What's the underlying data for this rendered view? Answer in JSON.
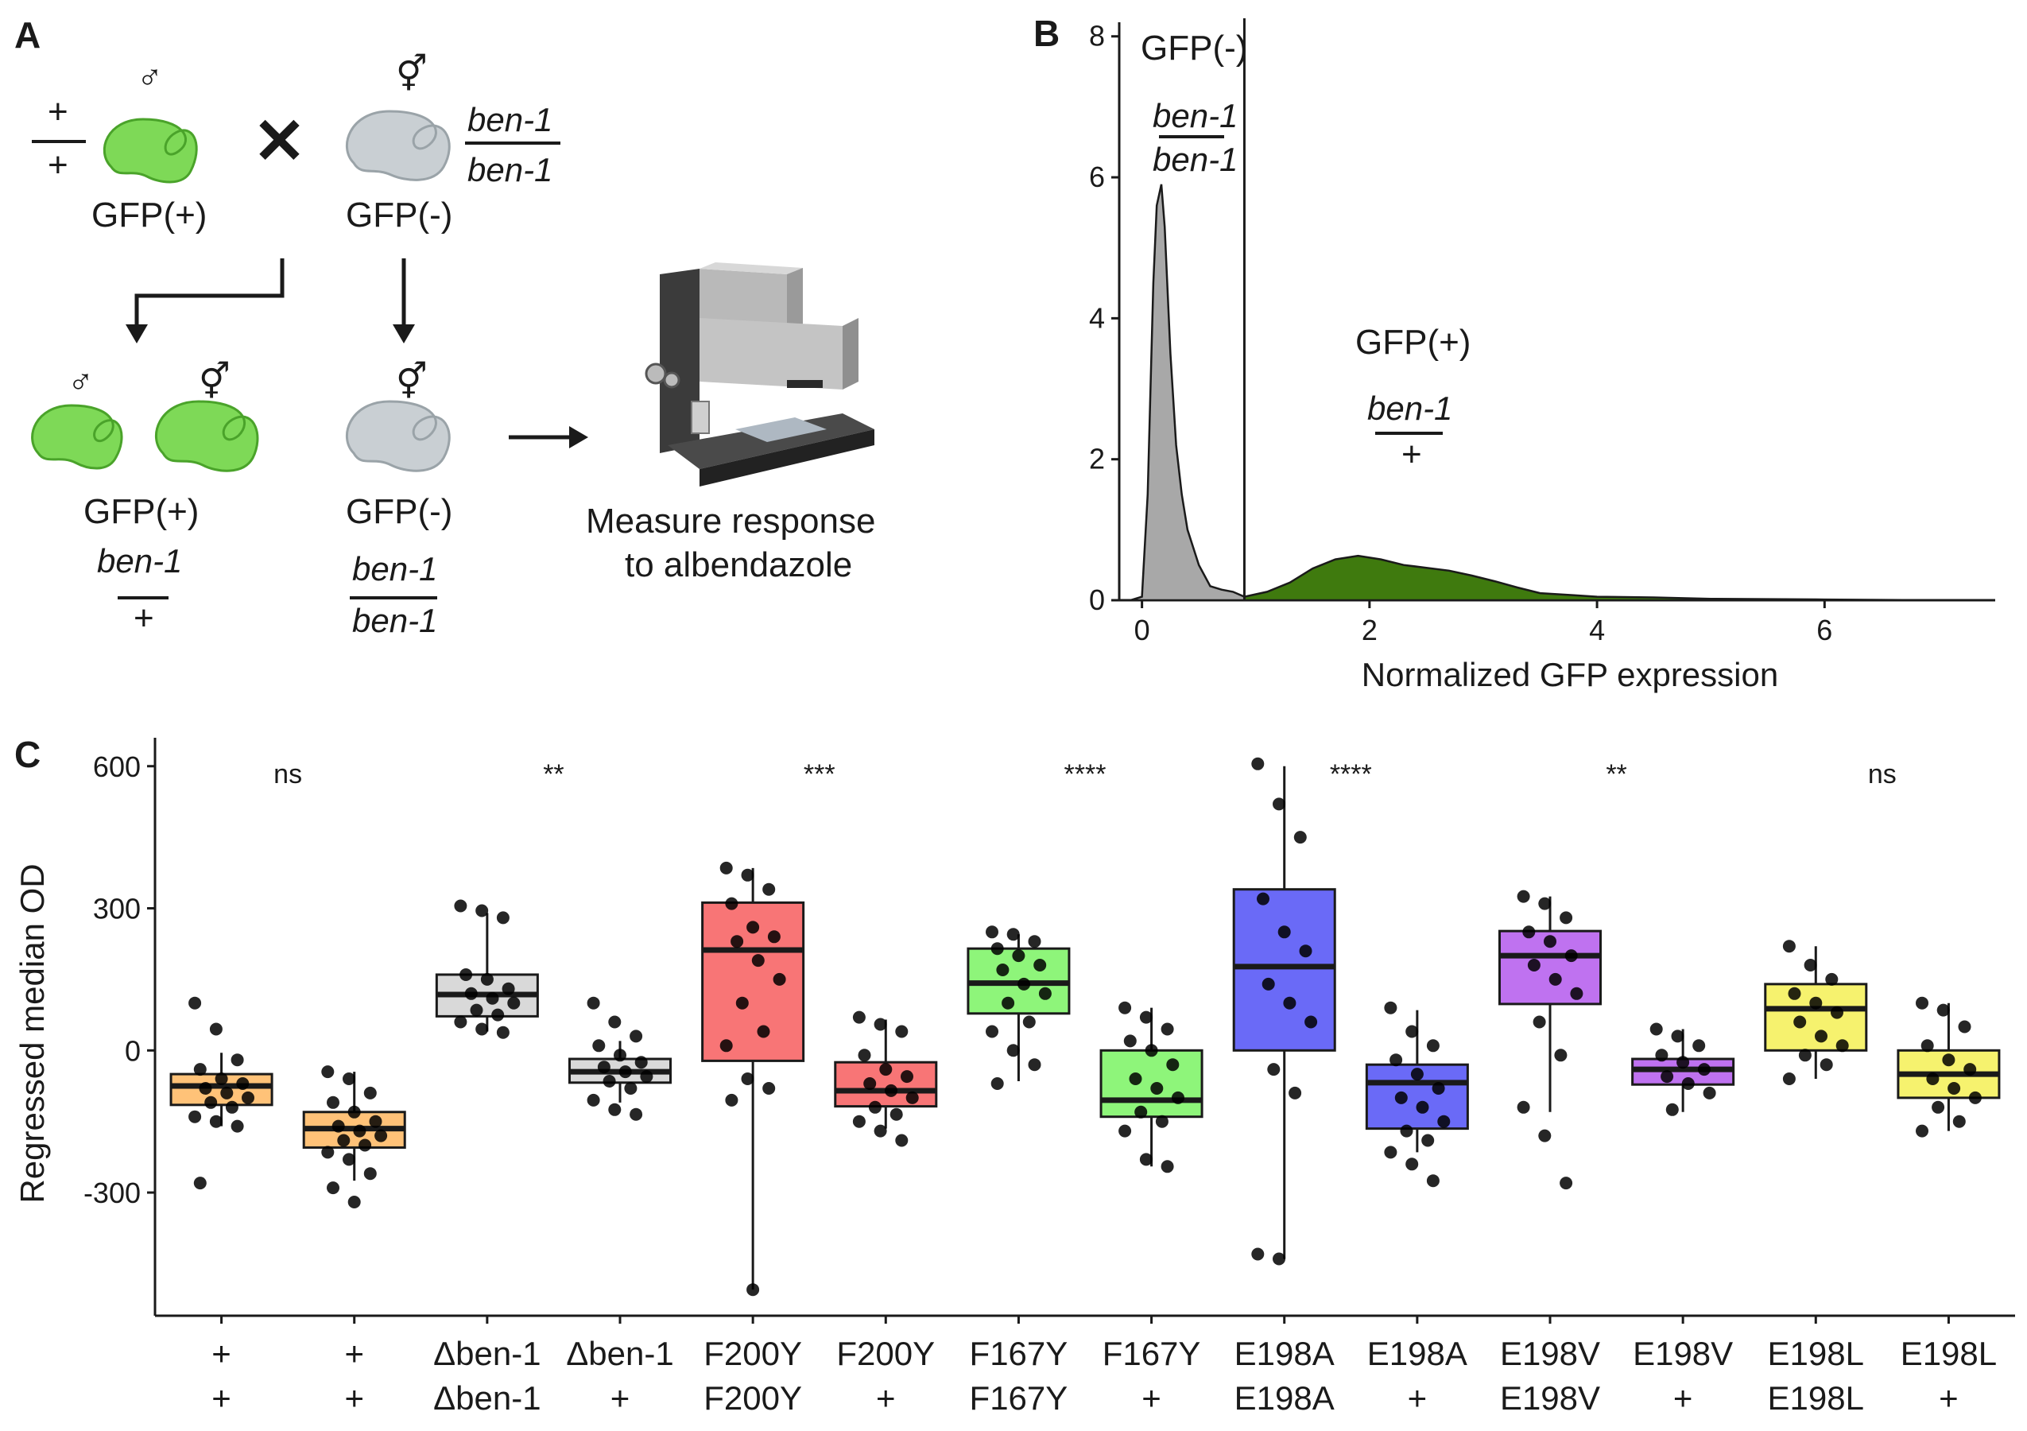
{
  "panels": {
    "a": "A",
    "b": "B",
    "c": "C"
  },
  "panel_a": {
    "plus": "+",
    "male_symbol": "♂",
    "herm_symbol": "⚥",
    "cross_symbol": "✕",
    "gfp_pos": "GFP(+)",
    "gfp_neg": "GFP(-)",
    "ben1": "ben-1",
    "measure_line1": "Measure response",
    "measure_line2": "to albendazole",
    "colors": {
      "gfp_green": "#7ed957",
      "worm_gray": "#c9cfd3"
    }
  },
  "panel_b": {
    "gfp_neg_label": "GFP(-)",
    "gfp_pos_label": "GFP(+)",
    "genotype_neg_top": "ben-1",
    "genotype_neg_bottom": "ben-1",
    "genotype_pos_top": "ben-1",
    "genotype_pos_bottom": "+",
    "xlabel": "Normalized GFP expression",
    "y_ticks": [
      "0",
      "2",
      "4",
      "6",
      "8"
    ],
    "x_ticks": [
      "0",
      "2",
      "4",
      "6"
    ],
    "threshold": 0.9,
    "colors": {
      "neg_fill": "#a8a8a8",
      "pos_fill": "#3f7a0e"
    }
  },
  "chart_data": [
    {
      "type": "area",
      "panel": "B",
      "xlabel": "Normalized GFP expression",
      "ylabel": "",
      "xlim": [
        -0.2,
        7.5
      ],
      "ylim": [
        0,
        8.2
      ],
      "threshold_line": 0.9,
      "series": [
        {
          "name": "GFP(-)",
          "x": [
            -0.1,
            0.0,
            0.05,
            0.1,
            0.13,
            0.17,
            0.2,
            0.25,
            0.3,
            0.35,
            0.4,
            0.5,
            0.6,
            0.7,
            0.8,
            0.9
          ],
          "y": [
            0.0,
            0.05,
            1.5,
            4.5,
            5.6,
            5.9,
            5.3,
            3.5,
            2.2,
            1.5,
            1.0,
            0.5,
            0.2,
            0.15,
            0.12,
            0.05
          ]
        },
        {
          "name": "GFP(+)",
          "x": [
            0.9,
            1.1,
            1.3,
            1.5,
            1.7,
            1.9,
            2.1,
            2.3,
            2.5,
            2.7,
            2.9,
            3.1,
            3.3,
            3.5,
            3.8,
            4.0,
            4.5,
            5.0,
            6.0,
            7.0,
            7.35
          ],
          "y": [
            0.05,
            0.12,
            0.25,
            0.45,
            0.58,
            0.63,
            0.58,
            0.5,
            0.46,
            0.42,
            0.35,
            0.27,
            0.18,
            0.1,
            0.07,
            0.05,
            0.04,
            0.02,
            0.01,
            0.0,
            0.0
          ]
        }
      ]
    },
    {
      "type": "box",
      "panel": "C",
      "ylabel": "Regressed median OD",
      "y_ticks": [
        "600",
        "300",
        "0",
        "-300"
      ],
      "ylim": [
        -560,
        660
      ],
      "categories": [
        {
          "top": "+",
          "bottom": "+",
          "color": "#ffc278"
        },
        {
          "top": "+",
          "bottom": "+",
          "color": "#ffc278"
        },
        {
          "top": "Δben-1",
          "bottom": "Δben-1",
          "color": "#d9d9d9"
        },
        {
          "top": "Δben-1",
          "bottom": "+",
          "color": "#d9d9d9"
        },
        {
          "top": "F200Y",
          "bottom": "F200Y",
          "color": "#f87576"
        },
        {
          "top": "F200Y",
          "bottom": "+",
          "color": "#f87576"
        },
        {
          "top": "F167Y",
          "bottom": "F167Y",
          "color": "#8ef57a"
        },
        {
          "top": "F167Y",
          "bottom": "+",
          "color": "#8ef57a"
        },
        {
          "top": "E198A",
          "bottom": "E198A",
          "color": "#6a6af7"
        },
        {
          "top": "E198A",
          "bottom": "+",
          "color": "#6a6af7"
        },
        {
          "top": "E198V",
          "bottom": "E198V",
          "color": "#bf72f0"
        },
        {
          "top": "E198V",
          "bottom": "+",
          "color": "#bf72f0"
        },
        {
          "top": "E198L",
          "bottom": "E198L",
          "color": "#f6f26e"
        },
        {
          "top": "E198L",
          "bottom": "+",
          "color": "#f6f26e"
        }
      ],
      "significance": [
        "ns",
        "**",
        "***",
        "****",
        "****",
        "**",
        "ns"
      ],
      "boxes": [
        {
          "q1": -115,
          "median": -75,
          "q3": -50,
          "whisker_low": -160,
          "whisker_high": -5
        },
        {
          "q1": -205,
          "median": -165,
          "q3": -130,
          "whisker_low": -275,
          "whisker_high": -45
        },
        {
          "q1": 72,
          "median": 118,
          "q3": 160,
          "whisker_low": 40,
          "whisker_high": 290
        },
        {
          "q1": -68,
          "median": -45,
          "q3": -18,
          "whisker_low": -110,
          "whisker_high": 20
        },
        {
          "q1": -22,
          "median": 212,
          "q3": 312,
          "whisker_low": -505,
          "whisker_high": 385
        },
        {
          "q1": -118,
          "median": -85,
          "q3": -25,
          "whisker_low": -165,
          "whisker_high": 65
        },
        {
          "q1": 78,
          "median": 142,
          "q3": 215,
          "whisker_low": -65,
          "whisker_high": 245
        },
        {
          "q1": -140,
          "median": -105,
          "q3": 0,
          "whisker_low": -245,
          "whisker_high": 90
        },
        {
          "q1": 0,
          "median": 177,
          "q3": 340,
          "whisker_low": -440,
          "whisker_high": 600
        },
        {
          "q1": -165,
          "median": -68,
          "q3": -30,
          "whisker_low": -215,
          "whisker_high": 85
        },
        {
          "q1": 98,
          "median": 200,
          "q3": 252,
          "whisker_low": -130,
          "whisker_high": 325
        },
        {
          "q1": -72,
          "median": -40,
          "q3": -18,
          "whisker_low": -130,
          "whisker_high": 45
        },
        {
          "q1": 0,
          "median": 88,
          "q3": 140,
          "whisker_low": -60,
          "whisker_high": 220
        },
        {
          "q1": -100,
          "median": -50,
          "q3": 0,
          "whisker_low": -170,
          "whisker_high": 100
        }
      ],
      "points": [
        [
          100,
          45,
          -20,
          -40,
          -60,
          -70,
          -80,
          -90,
          -100,
          -110,
          -120,
          -140,
          -150,
          -160,
          -280
        ],
        [
          -45,
          -60,
          -90,
          -110,
          -130,
          -150,
          -160,
          -170,
          -180,
          -190,
          -200,
          -215,
          -230,
          -260,
          -290,
          -320
        ],
        [
          305,
          295,
          280,
          160,
          150,
          130,
          120,
          110,
          100,
          85,
          75,
          60,
          45,
          38
        ],
        [
          100,
          60,
          30,
          10,
          -10,
          -25,
          -35,
          -45,
          -55,
          -65,
          -80,
          -105,
          -125,
          -135
        ],
        [
          385,
          370,
          340,
          310,
          260,
          240,
          230,
          190,
          150,
          100,
          40,
          10,
          -60,
          -80,
          -105,
          -505
        ],
        [
          70,
          55,
          40,
          -10,
          -40,
          -55,
          -70,
          -85,
          -100,
          -120,
          -135,
          -150,
          -170,
          -190
        ],
        [
          250,
          245,
          230,
          215,
          200,
          180,
          170,
          140,
          120,
          100,
          60,
          40,
          0,
          -30,
          -70
        ],
        [
          90,
          70,
          45,
          20,
          0,
          -30,
          -60,
          -80,
          -100,
          -130,
          -150,
          -170,
          -230,
          -245
        ],
        [
          605,
          520,
          450,
          320,
          250,
          210,
          140,
          100,
          60,
          -40,
          -90,
          -430,
          -440
        ],
        [
          90,
          40,
          10,
          -20,
          -50,
          -80,
          -100,
          -120,
          -150,
          -170,
          -190,
          -215,
          -240,
          -275
        ],
        [
          325,
          310,
          280,
          250,
          230,
          200,
          180,
          150,
          120,
          60,
          -10,
          -120,
          -180,
          -280
        ],
        [
          45,
          30,
          10,
          -10,
          -25,
          -40,
          -55,
          -70,
          -90,
          -125
        ],
        [
          220,
          180,
          150,
          120,
          100,
          80,
          60,
          30,
          10,
          -10,
          -30,
          -60
        ],
        [
          100,
          85,
          50,
          10,
          -20,
          -40,
          -60,
          -80,
          -100,
          -120,
          -150,
          -170
        ]
      ]
    }
  ]
}
